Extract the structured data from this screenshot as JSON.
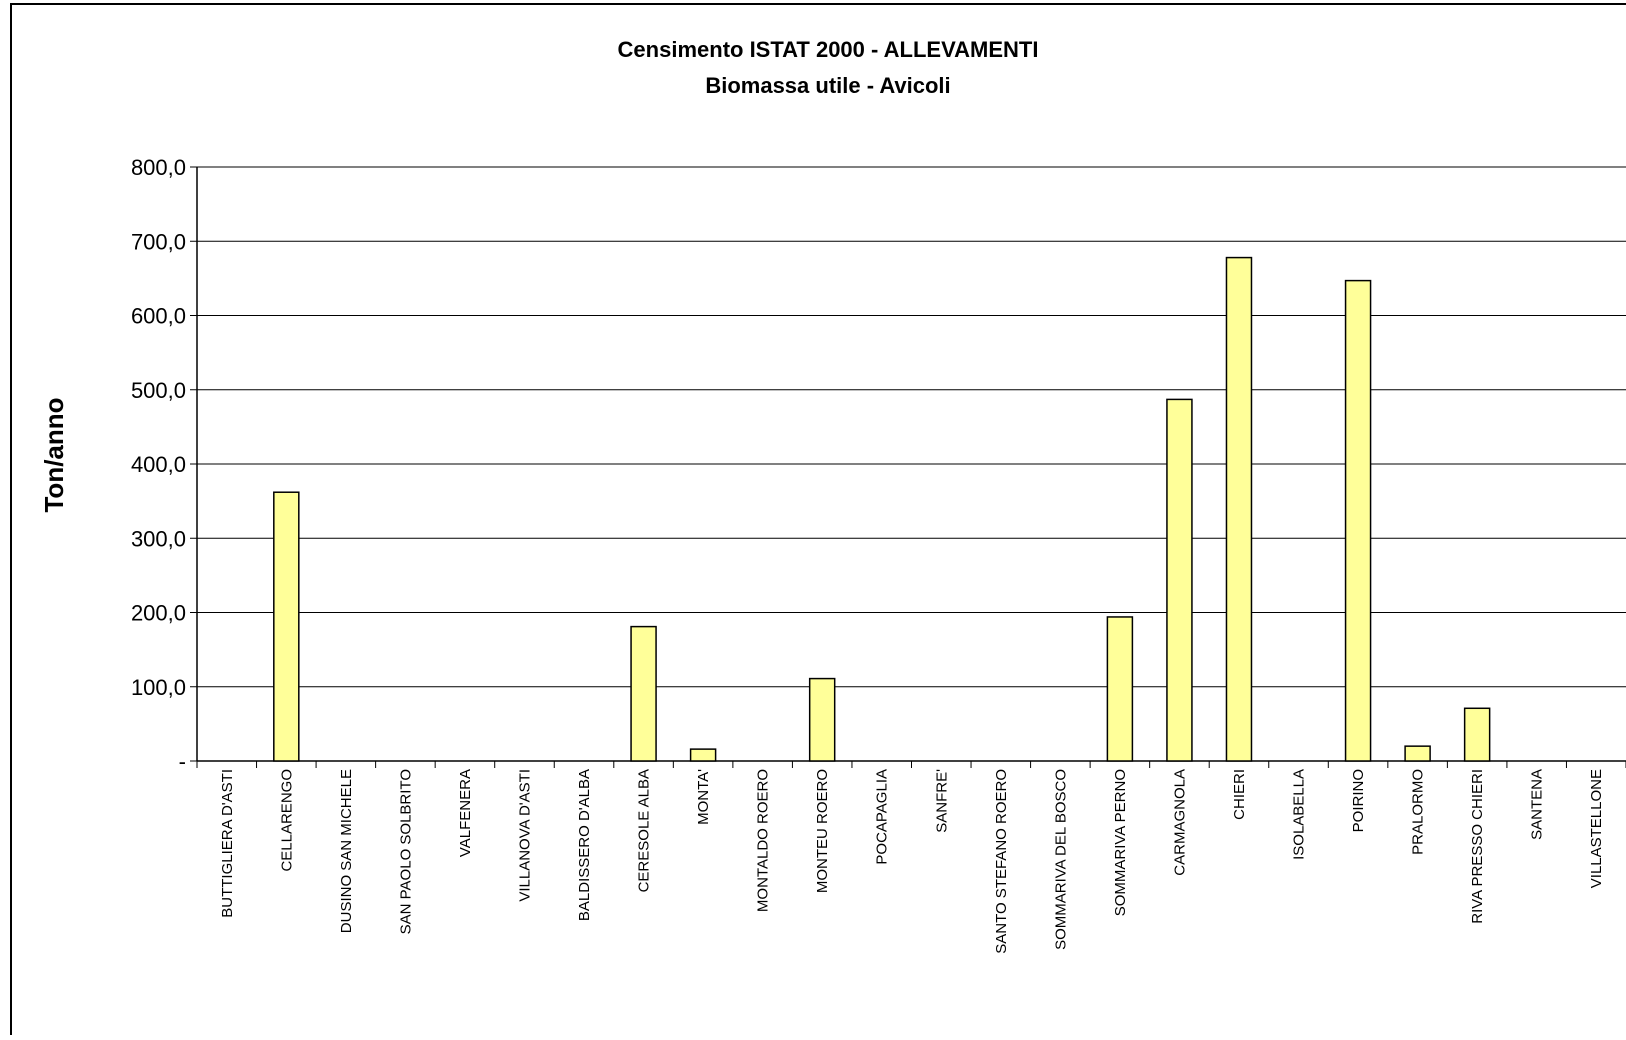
{
  "chart_data": {
    "type": "bar",
    "title": "Censimento ISTAT 2000 - ALLEVAMENTI",
    "subtitle": "Biomassa utile - Avicoli",
    "ylabel": "Ton/anno",
    "xlabel": "",
    "ylim": [
      0,
      800
    ],
    "yticks": [
      0,
      100,
      200,
      300,
      400,
      500,
      600,
      700,
      800
    ],
    "ytick_labels": [
      "-",
      "100,0",
      "200,0",
      "300,0",
      "400,0",
      "500,0",
      "600,0",
      "700,0",
      "800,0"
    ],
    "grid": true,
    "legend": "none",
    "categories": [
      "BUTTIGLIERA D'ASTI",
      "CELLARENGO",
      "DUSINO SAN MICHELE",
      "SAN PAOLO SOLBRITO",
      "VALFENERA",
      "VILLANOVA D'ASTI",
      "BALDISSERO D'ALBA",
      "CERESOLE ALBA",
      "MONTA'",
      "MONTALDO ROERO",
      "MONTEU ROERO",
      "POCAPAGLIA",
      "SANFRE'",
      "SANTO STEFANO ROERO",
      "SOMMARIVA DEL BOSCO",
      "SOMMARIVA PERNO",
      "CARMAGNOLA",
      "CHIERI",
      "ISOLABELLA",
      "POIRINO",
      "PRALORMO",
      "RIVA PRESSO CHIERI",
      "SANTENA",
      "VILLASTELLONE"
    ],
    "values": [
      0,
      362,
      0,
      0,
      0,
      0,
      0,
      181,
      16,
      0,
      111,
      0,
      0,
      0,
      0,
      194,
      487,
      678,
      0,
      647,
      20,
      71,
      0,
      0
    ],
    "colors": {
      "bar_fill": "#FFFF99",
      "bar_stroke": "#000000",
      "grid": "#000000"
    }
  }
}
